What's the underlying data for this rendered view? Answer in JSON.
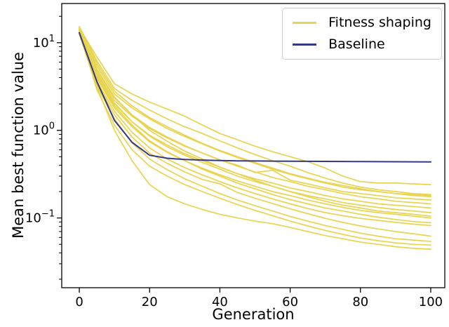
{
  "figure": {
    "background": "#ffffff",
    "frame_color": "#000000"
  },
  "chart_data": {
    "type": "line",
    "title": "",
    "xlabel": "Generation",
    "ylabel": "Mean best function value",
    "xscale": "linear",
    "yscale": "log",
    "grid": false,
    "xlim": [
      -5,
      104
    ],
    "ylim": [
      0.016,
      28
    ],
    "x_ticks": [
      0,
      20,
      40,
      60,
      80,
      100
    ],
    "y_ticks": [
      {
        "value": 10,
        "mantissa": "10",
        "exponent": "1"
      },
      {
        "value": 1,
        "mantissa": "10",
        "exponent": "0"
      },
      {
        "value": 0.1,
        "mantissa": "10",
        "exponent": "−1"
      }
    ],
    "x": [
      0,
      5,
      10,
      15,
      20,
      25,
      30,
      35,
      40,
      45,
      50,
      55,
      60,
      65,
      70,
      75,
      80,
      85,
      90,
      95,
      100
    ],
    "series": [
      {
        "name": "Fitness shaping",
        "color": "#e8d44e",
        "line_width": 1.7,
        "runs": [
          [
            14.8,
            6.9,
            3.4,
            2.6,
            2.1,
            1.75,
            1.45,
            1.15,
            0.92,
            0.78,
            0.66,
            0.57,
            0.5,
            0.44,
            0.37,
            0.3,
            0.26,
            0.25,
            0.25,
            0.245,
            0.24
          ],
          [
            15.3,
            6.2,
            3.0,
            2.2,
            1.7,
            1.35,
            1.1,
            0.92,
            0.76,
            0.63,
            0.53,
            0.45,
            0.39,
            0.33,
            0.285,
            0.25,
            0.225,
            0.21,
            0.2,
            0.19,
            0.185
          ],
          [
            13.8,
            5.4,
            2.6,
            1.8,
            1.35,
            1.05,
            0.85,
            0.7,
            0.58,
            0.49,
            0.42,
            0.36,
            0.315,
            0.28,
            0.25,
            0.225,
            0.21,
            0.2,
            0.19,
            0.185,
            0.18
          ],
          [
            14.9,
            5.8,
            2.8,
            1.9,
            1.4,
            1.1,
            0.88,
            0.71,
            0.59,
            0.5,
            0.43,
            0.37,
            0.32,
            0.285,
            0.255,
            0.235,
            0.215,
            0.2,
            0.19,
            0.18,
            0.175
          ],
          [
            13.2,
            4.6,
            2.2,
            1.45,
            1.05,
            0.82,
            0.66,
            0.55,
            0.46,
            0.4,
            0.33,
            0.35,
            0.27,
            0.245,
            0.22,
            0.2,
            0.19,
            0.18,
            0.17,
            0.165,
            0.16
          ],
          [
            14.2,
            4.9,
            2.35,
            1.5,
            1.08,
            0.84,
            0.67,
            0.55,
            0.46,
            0.39,
            0.335,
            0.29,
            0.26,
            0.23,
            0.21,
            0.19,
            0.175,
            0.165,
            0.155,
            0.15,
            0.145
          ],
          [
            12.8,
            4.2,
            2.0,
            1.25,
            0.88,
            0.68,
            0.54,
            0.45,
            0.38,
            0.32,
            0.28,
            0.25,
            0.22,
            0.2,
            0.18,
            0.165,
            0.155,
            0.145,
            0.14,
            0.135,
            0.13
          ],
          [
            13.6,
            4.4,
            2.05,
            1.25,
            0.86,
            0.65,
            0.52,
            0.43,
            0.36,
            0.3,
            0.26,
            0.23,
            0.2,
            0.18,
            0.165,
            0.15,
            0.14,
            0.132,
            0.125,
            0.12,
            0.115
          ],
          [
            14.5,
            5.0,
            2.4,
            1.5,
            1.0,
            0.75,
            0.58,
            0.47,
            0.38,
            0.32,
            0.27,
            0.23,
            0.2,
            0.175,
            0.155,
            0.14,
            0.13,
            0.12,
            0.115,
            0.11,
            0.105
          ],
          [
            13.0,
            3.9,
            1.8,
            1.1,
            0.74,
            0.56,
            0.45,
            0.37,
            0.31,
            0.265,
            0.23,
            0.2,
            0.18,
            0.16,
            0.145,
            0.132,
            0.122,
            0.115,
            0.11,
            0.105,
            0.1
          ],
          [
            14.0,
            4.1,
            1.9,
            1.15,
            0.76,
            0.57,
            0.45,
            0.36,
            0.3,
            0.25,
            0.215,
            0.185,
            0.162,
            0.145,
            0.13,
            0.12,
            0.11,
            0.102,
            0.096,
            0.091,
            0.088
          ],
          [
            12.6,
            3.6,
            1.65,
            0.95,
            0.63,
            0.47,
            0.375,
            0.31,
            0.26,
            0.22,
            0.19,
            0.165,
            0.145,
            0.128,
            0.115,
            0.106,
            0.099,
            0.094,
            0.089,
            0.085,
            0.082
          ],
          [
            13.4,
            3.4,
            1.5,
            0.84,
            0.55,
            0.42,
            0.335,
            0.275,
            0.245,
            0.195,
            0.168,
            0.146,
            0.127,
            0.112,
            0.099,
            0.089,
            0.081,
            0.075,
            0.07,
            0.066,
            0.062
          ],
          [
            14.4,
            3.2,
            1.35,
            0.72,
            0.47,
            0.355,
            0.28,
            0.23,
            0.19,
            0.16,
            0.138,
            0.12,
            0.104,
            0.092,
            0.082,
            0.074,
            0.067,
            0.062,
            0.058,
            0.056,
            0.054
          ],
          [
            13.9,
            2.9,
            1.15,
            0.6,
            0.39,
            0.3,
            0.24,
            0.2,
            0.168,
            0.142,
            0.122,
            0.106,
            0.092,
            0.081,
            0.072,
            0.065,
            0.059,
            0.055,
            0.052,
            0.05,
            0.049
          ],
          [
            12.5,
            3.1,
            1.0,
            0.45,
            0.24,
            0.175,
            0.145,
            0.125,
            0.11,
            0.1,
            0.092,
            0.086,
            0.078,
            0.07,
            0.063,
            0.058,
            0.053,
            0.05,
            0.047,
            0.045,
            0.044
          ]
        ]
      },
      {
        "name": "Baseline",
        "color": "#333a85",
        "line_width": 2.0,
        "runs": [
          [
            13.0,
            3.6,
            1.3,
            0.73,
            0.52,
            0.48,
            0.465,
            0.458,
            0.452,
            0.449,
            0.447,
            0.445,
            0.444,
            0.443,
            0.442,
            0.441,
            0.44,
            0.439,
            0.438,
            0.437,
            0.436
          ]
        ]
      }
    ],
    "legend": {
      "position": "upper right",
      "entries": [
        {
          "label": "Fitness shaping",
          "color": "#e8d44e"
        },
        {
          "label": "Baseline",
          "color": "#333a85"
        }
      ]
    }
  }
}
